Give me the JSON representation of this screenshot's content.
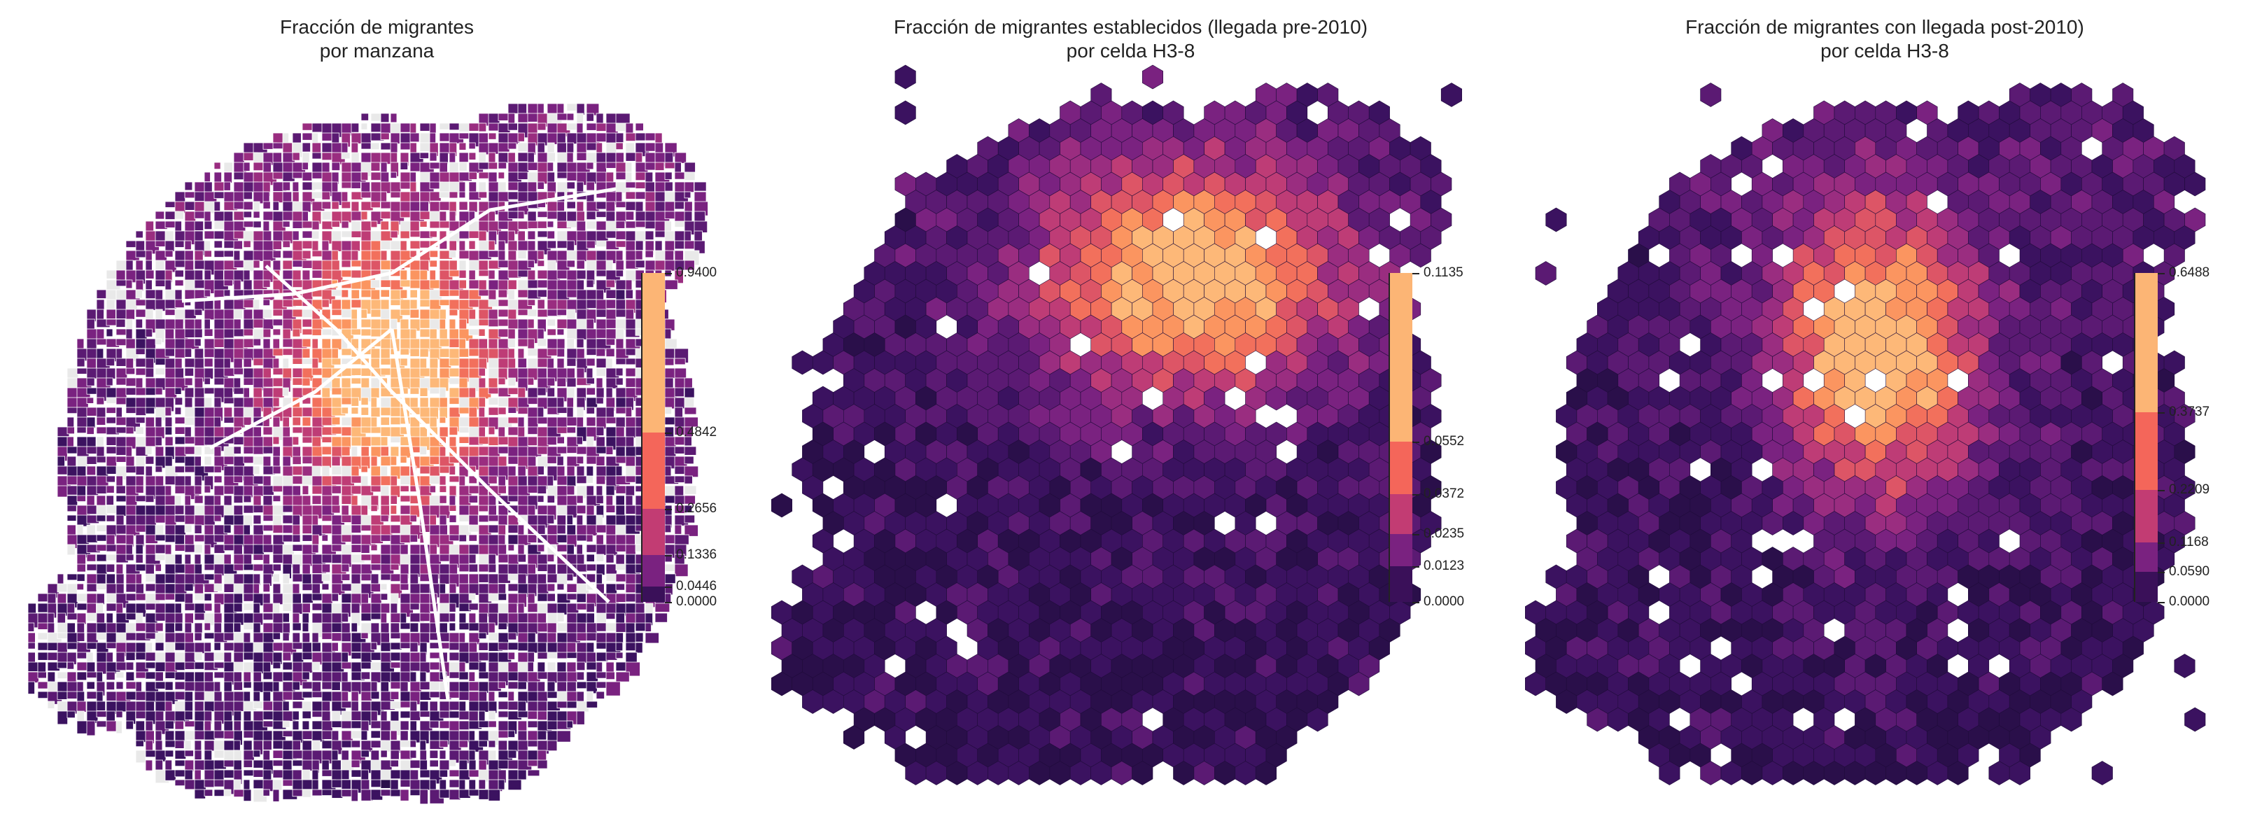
{
  "palette": {
    "magma": [
      "#2a0f4a",
      "#3b1260",
      "#5b1a73",
      "#7a2280",
      "#9a2d80",
      "#be3c76",
      "#dd5566",
      "#f2705c",
      "#fb9560",
      "#fdb878"
    ],
    "colorbar_bins": [
      "#3a1059",
      "#7a2280",
      "#c23c73",
      "#f4665a",
      "#fcb575"
    ],
    "grey_block": "#e9e9e9"
  },
  "panels": [
    {
      "id": "manzana",
      "title_line1": "Fracción de migrantes",
      "title_line2": "por manzana",
      "colorbar": {
        "ticks": [
          "0.9400",
          "0.4842",
          "0.2656",
          "0.1336",
          "0.0446",
          "0.0000"
        ],
        "fractions": [
          1.0,
          0.5151,
          0.2826,
          0.1421,
          0.0474,
          0.0
        ]
      }
    },
    {
      "id": "pre2010",
      "title_line1": "Fracción de migrantes establecidos (llegada pre-2010)",
      "title_line2": "por celda H3-8",
      "colorbar": {
        "ticks": [
          "0.1135",
          "0.0552",
          "0.0372",
          "0.0235",
          "0.0123",
          "0.0000"
        ],
        "fractions": [
          1.0,
          0.4863,
          0.3278,
          0.207,
          0.1084,
          0.0
        ]
      }
    },
    {
      "id": "post2010",
      "title_line1": "Fracción de migrantes con llegada post-2010)",
      "title_line2": "por celda H3-8",
      "colorbar": {
        "ticks": [
          "0.6488",
          "0.3737",
          "0.2209",
          "0.1168",
          "0.0590",
          "0.0000"
        ],
        "fractions": [
          1.0,
          0.576,
          0.3405,
          0.18,
          0.0909,
          0.0
        ]
      }
    }
  ]
}
